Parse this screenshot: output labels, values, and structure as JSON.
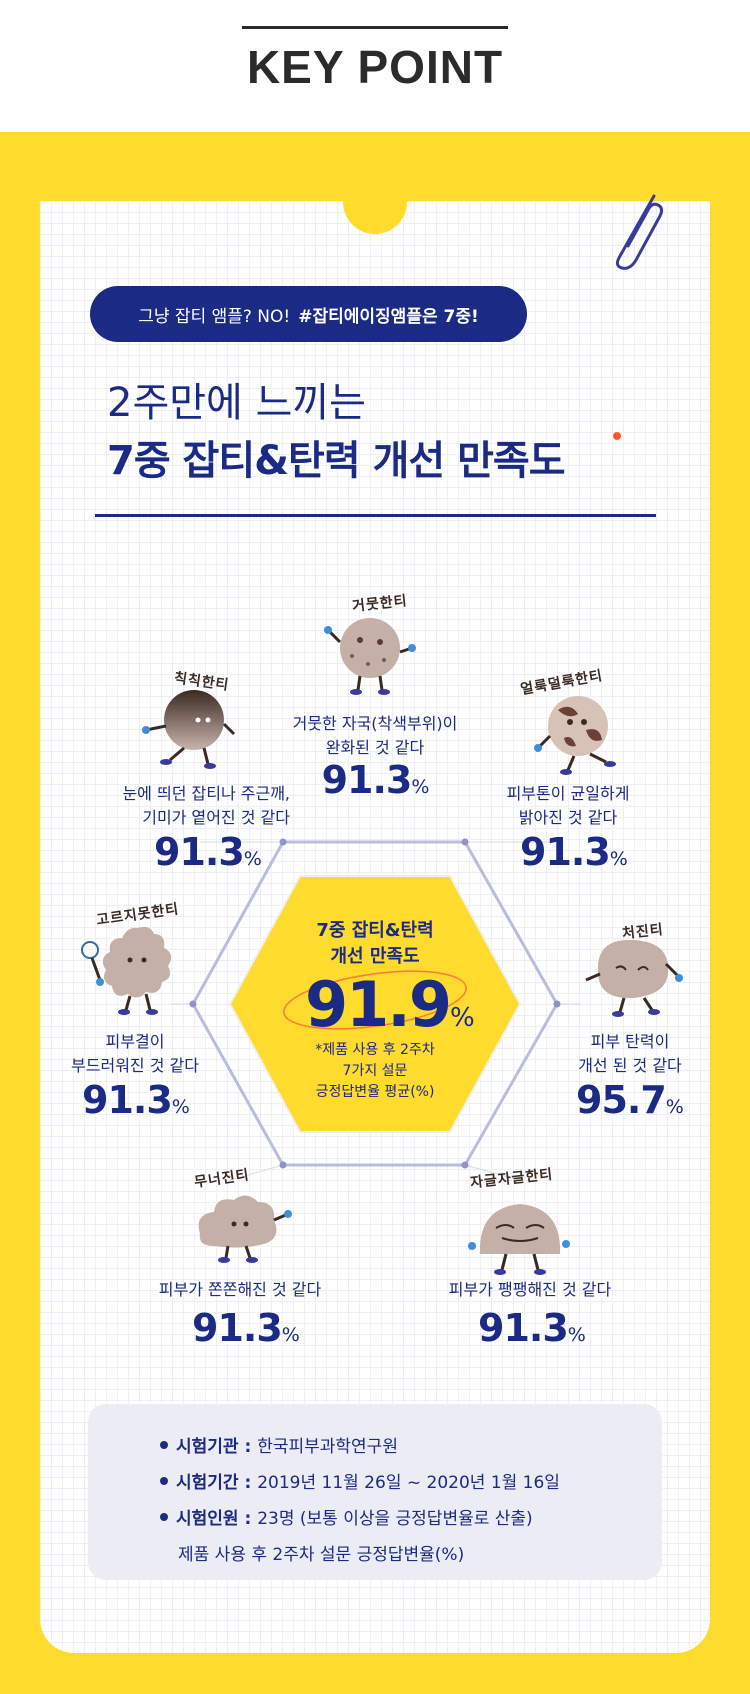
{
  "header": {
    "title": "KEY POINT"
  },
  "pill": {
    "plain": "그냥 잡티 앰플? NO!",
    "bold": "#잡티에이징앰플은 7중!"
  },
  "headline": {
    "sub": "2주만에 느끼는",
    "main": "7중 잡티&탄력 개선 만족도"
  },
  "center": {
    "title": "7중 잡티&탄력\n개선 만족도",
    "value": "91.9",
    "unit": "%",
    "note": "*제품 사용 후 2주차\n7가지 설문\n긍정답변율 평균(%)"
  },
  "items": [
    {
      "name": "거뭇한티",
      "label": "거뭇한 자국(착색부위)이\n완화된 것 같다",
      "value": "91.3",
      "unit": "%"
    },
    {
      "name": "칙칙한티",
      "label": "눈에 띄던 잡티나 주근깨,\n기미가 옅어진 것 같다",
      "value": "91.3",
      "unit": "%"
    },
    {
      "name": "얼룩덜룩한티",
      "label": "피부톤이 균일하게\n밝아진 것 같다",
      "value": "91.3",
      "unit": "%"
    },
    {
      "name": "고르지못한티",
      "label": "피부결이\n부드러워진 것 같다",
      "value": "91.3",
      "unit": "%"
    },
    {
      "name": "처진티",
      "label": "피부 탄력이\n개선 된 것 같다",
      "value": "95.7",
      "unit": "%"
    },
    {
      "name": "무너진티",
      "label": "피부가 쫀쫀해진 것 같다",
      "value": "91.3",
      "unit": "%"
    },
    {
      "name": "자글자글한티",
      "label": "피부가 팽팽해진 것 같다",
      "value": "91.3",
      "unit": "%"
    }
  ],
  "info": {
    "org_key": "시험기관",
    "org_val": "한국피부과학연구원",
    "period_key": "시험기간",
    "period_val": "2019년 11월 26일 ~ 2020년 1월 16일",
    "people_key": "시험인원",
    "people_val": "23명 (보통 이상을 긍정답변율로 산출)",
    "footnote": "제품 사용 후 2주차 설문 긍정답변율(%)"
  },
  "colors": {
    "navy": "#1b2a84",
    "yellow": "#fedb2c",
    "accent": "#ff5a1f",
    "character": "#b39a90"
  }
}
